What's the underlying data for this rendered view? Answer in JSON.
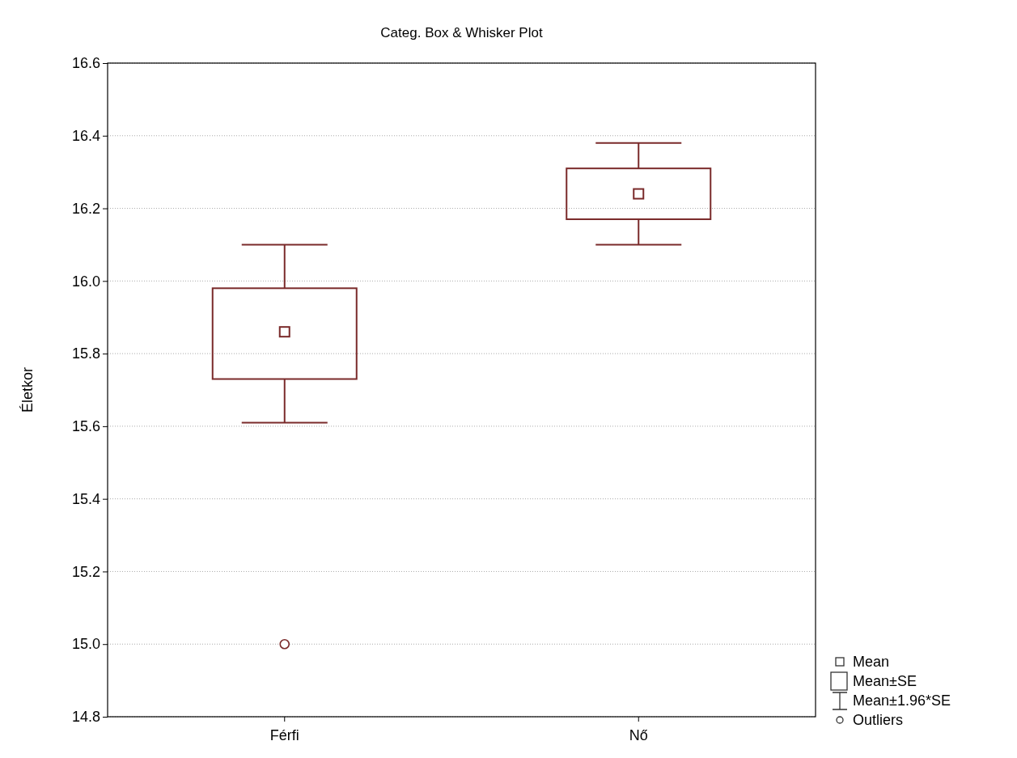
{
  "chart_data": {
    "type": "box",
    "title": "Categ. Box & Whisker Plot",
    "ylabel": "Életkor",
    "categories": [
      "Férfi",
      "Nő"
    ],
    "boxes": [
      {
        "low": 15.61,
        "q1": 15.73,
        "median": 15.86,
        "q3": 15.98,
        "high": 16.1,
        "outliers": [
          15.0
        ]
      },
      {
        "low": 16.1,
        "q1": 16.17,
        "median": 16.24,
        "q3": 16.31,
        "high": 16.38
      }
    ],
    "color": "#7a2a2a",
    "ylim": [
      14.8,
      16.6
    ],
    "yticks": [
      14.8,
      {
        "value": 15,
        "label": "15.0"
      },
      15.2,
      15.4,
      15.6,
      15.8,
      {
        "value": 16,
        "label": "16.0"
      },
      16.2,
      16.4,
      16.6
    ],
    "grid": "y",
    "annotations": [
      "Mean",
      "Mean±SE",
      "Mean±1.96*SE",
      "Outliers"
    ]
  }
}
